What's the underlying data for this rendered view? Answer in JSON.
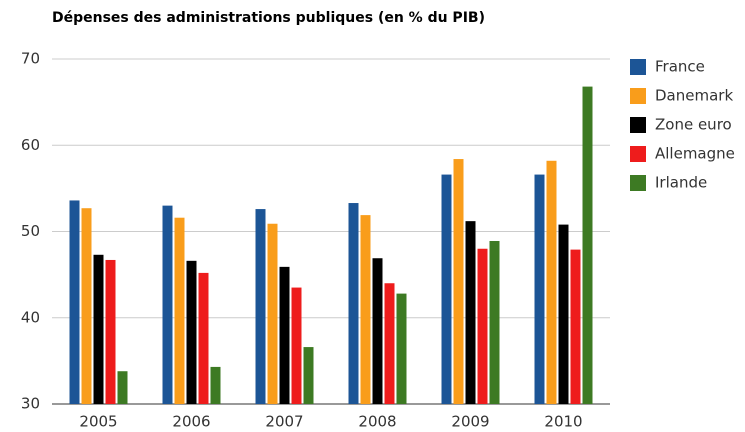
{
  "chart_data": {
    "type": "bar",
    "title": "Dépenses des administrations publiques (en % du PIB)",
    "categories": [
      "2005",
      "2006",
      "2007",
      "2008",
      "2009",
      "2010"
    ],
    "series": [
      {
        "name": "France",
        "color": "#1c5596",
        "values": [
          53.6,
          53.0,
          52.6,
          53.3,
          56.6,
          56.6
        ]
      },
      {
        "name": "Danemark",
        "color": "#f99d1b",
        "values": [
          52.7,
          51.6,
          50.9,
          51.9,
          58.4,
          58.2
        ]
      },
      {
        "name": "Zone euro",
        "color": "#000000",
        "values": [
          47.3,
          46.6,
          45.9,
          46.9,
          51.2,
          50.8
        ]
      },
      {
        "name": "Allemagne",
        "color": "#ee1c1c",
        "values": [
          46.7,
          45.2,
          43.5,
          44.0,
          48.0,
          47.9
        ]
      },
      {
        "name": "Irlande",
        "color": "#3d7a23",
        "values": [
          33.8,
          34.3,
          36.6,
          42.8,
          48.9,
          66.8
        ]
      }
    ],
    "ylim": [
      30,
      70
    ],
    "yticks": [
      30,
      40,
      50,
      60,
      70
    ],
    "grid": true,
    "legend": "right"
  }
}
